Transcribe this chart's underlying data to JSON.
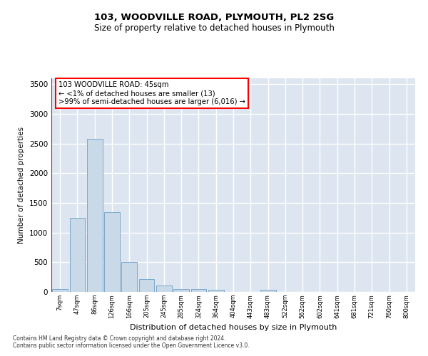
{
  "title1": "103, WOODVILLE ROAD, PLYMOUTH, PL2 2SG",
  "title2": "Size of property relative to detached houses in Plymouth",
  "xlabel": "Distribution of detached houses by size in Plymouth",
  "ylabel": "Number of detached properties",
  "bar_labels": [
    "7sqm",
    "47sqm",
    "86sqm",
    "126sqm",
    "166sqm",
    "205sqm",
    "245sqm",
    "285sqm",
    "324sqm",
    "364sqm",
    "404sqm",
    "443sqm",
    "483sqm",
    "522sqm",
    "562sqm",
    "602sqm",
    "641sqm",
    "681sqm",
    "721sqm",
    "760sqm",
    "800sqm"
  ],
  "bar_heights": [
    50,
    1250,
    2580,
    1340,
    500,
    220,
    110,
    50,
    45,
    35,
    0,
    0,
    40,
    0,
    0,
    0,
    0,
    0,
    0,
    0,
    0
  ],
  "ylim": [
    0,
    3600
  ],
  "yticks": [
    0,
    500,
    1000,
    1500,
    2000,
    2500,
    3000,
    3500
  ],
  "bar_color": "#c9d9e8",
  "bar_edgecolor": "#7aa8cc",
  "annotation_line1": "103 WOODVILLE ROAD: 45sqm",
  "annotation_line2": "← <1% of detached houses are smaller (13)",
  "annotation_line3": ">99% of semi-detached houses are larger (6,016) →",
  "background_color": "#dde6f0",
  "grid_color": "#ffffff",
  "footer1": "Contains HM Land Registry data © Crown copyright and database right 2024.",
  "footer2": "Contains public sector information licensed under the Open Government Licence v3.0."
}
